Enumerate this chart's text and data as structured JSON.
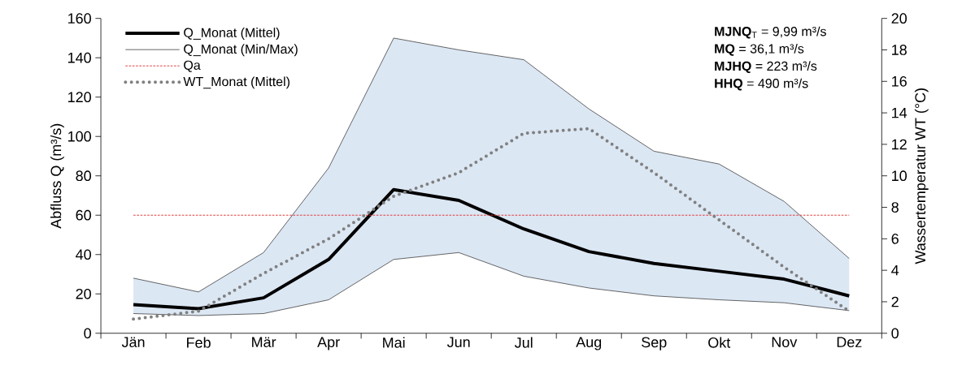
{
  "chart_data": {
    "type": "line",
    "categories": [
      "Jän",
      "Feb",
      "Mär",
      "Apr",
      "Mai",
      "Jun",
      "Jul",
      "Aug",
      "Sep",
      "Okt",
      "Nov",
      "Dez"
    ],
    "series": [
      {
        "name": "Q_Monat (Mittel)",
        "color": "#000000",
        "line_style": "solid",
        "values": [
          14.5,
          12.5,
          18,
          37.5,
          73,
          67.5,
          53,
          41.5,
          35.5,
          31.5,
          27.5,
          19
        ],
        "lower": [
          10,
          9,
          10,
          17,
          37.5,
          41,
          29,
          23,
          19,
          17,
          15.5,
          11.5
        ],
        "upper": [
          28,
          21,
          41,
          84,
          150,
          144,
          139,
          114,
          92.5,
          86,
          67,
          38
        ]
      },
      {
        "name": "Q_Monat (Min/Max)",
        "color": "#404040",
        "line_style": "solid",
        "values": [
          28,
          21,
          41,
          84,
          150,
          144,
          139,
          114,
          92.5,
          86,
          67,
          38
        ]
      },
      {
        "color": "#404040",
        "line_style": "solid",
        "values": [
          10,
          9,
          10,
          17,
          37.5,
          41,
          29,
          23,
          19,
          17,
          15.5,
          11.5
        ]
      },
      {
        "name": "WT_Monat (Mittel)",
        "color": "#808080",
        "line_style": "dotted",
        "axis": "y2",
        "values": [
          0.9,
          1.4,
          3.8,
          6.0,
          8.7,
          10.2,
          12.7,
          13.0,
          10.2,
          7.2,
          4.2,
          1.4
        ]
      }
    ],
    "ylim": [
      0,
      160
    ],
    "yticks": [
      0,
      20,
      40,
      60,
      80,
      100,
      120,
      140,
      160
    ],
    "y2lim": [
      0,
      20
    ],
    "y2ticks": [
      0,
      2,
      4,
      6,
      8,
      10,
      12,
      14,
      16,
      18,
      20
    ],
    "ylabel": "Abfluss Q (m³/s)",
    "y2label": "Wassertemperatur WT (°C)",
    "ref_lines": [
      {
        "axis": "y",
        "value": 60,
        "label": "Qa",
        "color": "#e03030",
        "line_style": "dashed"
      }
    ],
    "annotations": [
      "**MJNQ**$_{T}$ = 9,99 m³/s",
      "**MQ** = 36,1 m³/s",
      "**MJHQ** = 223 m³/s",
      "**HHQ** = 490 m³/s"
    ],
    "legend": "top left",
    "marker": "none"
  }
}
